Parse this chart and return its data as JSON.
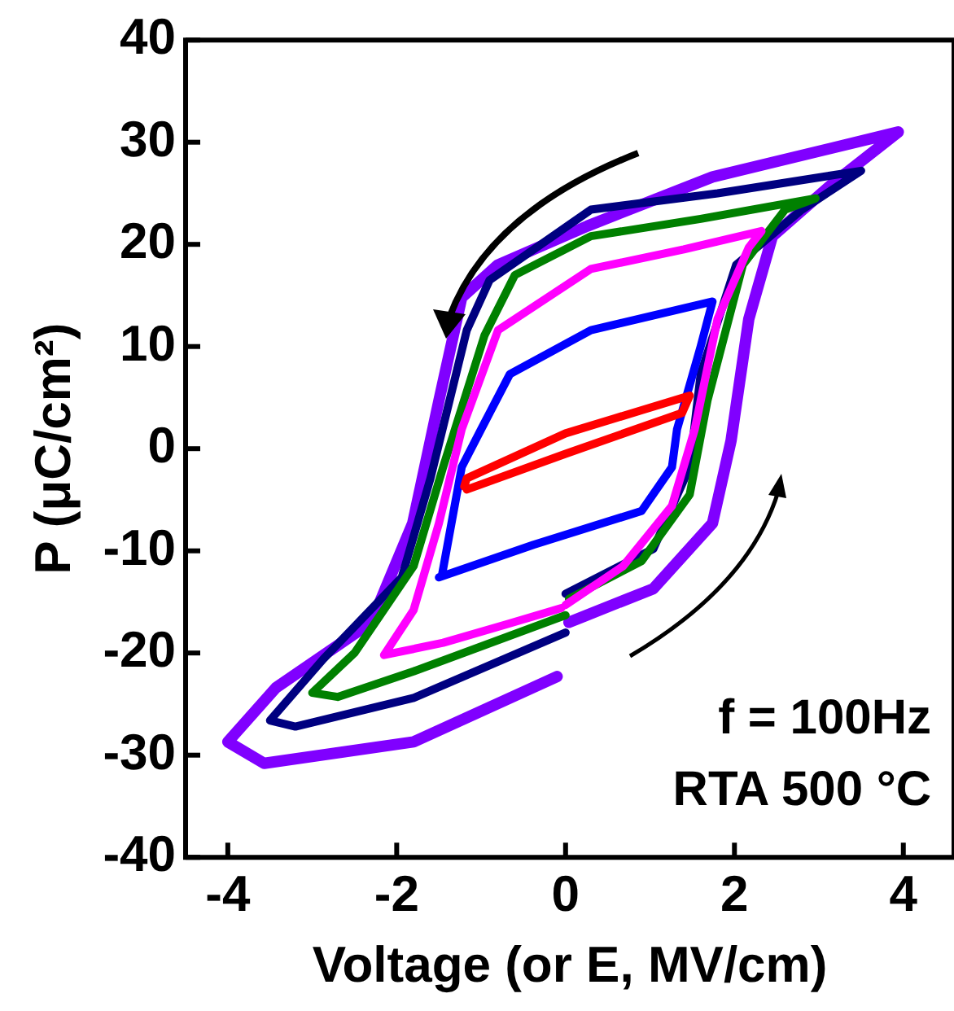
{
  "chart_data": {
    "type": "line",
    "xlabel": "Voltage (or E, MV/cm)",
    "ylabel": "P (μC/cm²)",
    "xlim": [
      -4.5,
      4.6
    ],
    "xticks": [
      -4,
      -2,
      0,
      2,
      4
    ],
    "ylim": [
      -40,
      40
    ],
    "yticks": [
      -40,
      -30,
      -20,
      -10,
      0,
      10,
      20,
      30,
      40
    ],
    "grid": false,
    "legend": false,
    "marker": "none",
    "annotations": [
      "f = 100Hz",
      "RTA 500 °C"
    ],
    "series": [
      {
        "color": "#ff0000",
        "x": [
          -1.17,
          0,
          1.38,
          1.47,
          0,
          -1.17,
          -1.2
        ],
        "values": [
          -4,
          -0.5,
          3.5,
          5.2,
          1.5,
          -2.9,
          -3.7
        ]
      },
      {
        "color": "#0000ff",
        "x": [
          -1.5,
          -0.38,
          0.9,
          1.26,
          1.32,
          1.6,
          1.74,
          0.3,
          -0.66,
          -1.0,
          -1.23,
          -1.46
        ],
        "values": [
          -12.6,
          -9.4,
          -6.1,
          -1.8,
          1.9,
          10,
          14.4,
          11.6,
          7.3,
          1.9,
          -1.8,
          -12.2
        ]
      },
      {
        "color": "#ff00ff",
        "x": [
          0,
          0.68,
          1.26,
          1.53,
          1.8,
          2.17,
          2.32,
          1.4,
          0.3,
          -0.8,
          -1.23,
          -1.5,
          -1.8,
          -2.15,
          -1.45,
          -0.7,
          -0.05
        ],
        "values": [
          -15.3,
          -11.5,
          -5.6,
          1.9,
          12.7,
          19.7,
          21.3,
          19.5,
          17.6,
          11.6,
          1.9,
          -7.3,
          -15.8,
          -20.2,
          -19,
          -17.2,
          -15.6
        ]
      },
      {
        "color": "#008000",
        "x": [
          0.04,
          0.9,
          1.47,
          1.68,
          2.1,
          2.6,
          2.96,
          1.6,
          0.3,
          -0.6,
          -0.96,
          -1.45,
          -1.8,
          -2.5,
          -3.0,
          -2.7,
          -1.8,
          0
        ],
        "values": [
          -14.7,
          -11,
          -4.5,
          4.7,
          18,
          23.4,
          24.5,
          22.5,
          20.8,
          17,
          11.1,
          -1.8,
          -11.5,
          -20,
          -23.9,
          -24.3,
          -21.8,
          -16.3
        ]
      },
      {
        "color": "#000080",
        "x": [
          0,
          1.04,
          1.47,
          1.6,
          2.02,
          2.8,
          3.5,
          1.8,
          0.3,
          -0.9,
          -1.17,
          -1.6,
          -1.94,
          -2.87,
          -3.5,
          -3.2,
          -1.8,
          0
        ],
        "values": [
          -14.2,
          -9.8,
          -1.8,
          7.3,
          18,
          23.4,
          27.2,
          25,
          23.4,
          16.5,
          11.6,
          -2.9,
          -12.6,
          -20.6,
          -26.6,
          -27.2,
          -24.4,
          -18
        ]
      },
      {
        "color": "#8000ff",
        "x": [
          0.04,
          1.04,
          1.74,
          1.96,
          2.17,
          2.45,
          3.17,
          3.94,
          1.74,
          0.26,
          -0.8,
          -1.23,
          -1.5,
          -1.81,
          -2.3,
          -3.43,
          -4.0,
          -3.57,
          -1.8,
          -0.1
        ],
        "values": [
          -17,
          -13.7,
          -7.3,
          0.8,
          12.7,
          20.8,
          26,
          31,
          26.6,
          21.8,
          18,
          14.8,
          4.7,
          -7.3,
          -17,
          -23.4,
          -28.7,
          -30.8,
          -28.7,
          -22.3
        ]
      }
    ]
  }
}
